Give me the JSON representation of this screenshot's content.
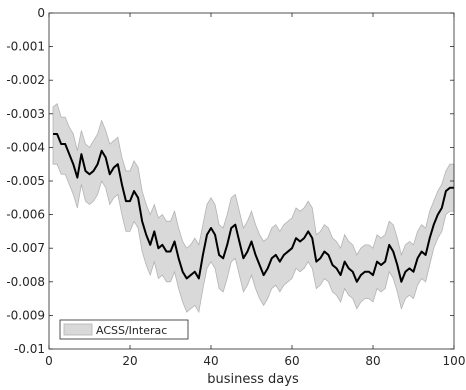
{
  "chart_data": {
    "type": "line",
    "title": "",
    "xlabel": "business days",
    "ylabel": "",
    "xlim": [
      0,
      100
    ],
    "ylim": [
      -0.01,
      0
    ],
    "xticks": [
      0,
      20,
      40,
      60,
      80,
      100
    ],
    "xtick_labels": [
      "0",
      "20",
      "40",
      "60",
      "80",
      "100"
    ],
    "yticks": [
      0,
      -0.001,
      -0.002,
      -0.003,
      -0.004,
      -0.005,
      -0.006,
      -0.007,
      -0.008,
      -0.009,
      -0.01
    ],
    "ytick_labels": [
      "0",
      "-0.001",
      "-0.002",
      "-0.003",
      "-0.004",
      "-0.005",
      "-0.006",
      "-0.007",
      "-0.008",
      "-0.009",
      "-0.01"
    ],
    "grid": false,
    "legend_position": "bottom-left",
    "legend": [
      "ACSS/Interac"
    ],
    "colors": {
      "line": "#000000",
      "band_fill": "#d9d9d9",
      "band_edge": "#b3b3b3",
      "axis": "#262626"
    },
    "series": [
      {
        "name": "",
        "role": "point estimate",
        "x": [
          1,
          2,
          3,
          4,
          5,
          6,
          7,
          8,
          9,
          10,
          11,
          12,
          13,
          14,
          15,
          16,
          17,
          18,
          19,
          20,
          21,
          22,
          23,
          24,
          25,
          26,
          27,
          28,
          29,
          30,
          31,
          32,
          33,
          34,
          35,
          36,
          37,
          38,
          39,
          40,
          41,
          42,
          43,
          44,
          45,
          46,
          47,
          48,
          49,
          50,
          51,
          52,
          53,
          54,
          55,
          56,
          57,
          58,
          59,
          60,
          61,
          62,
          63,
          64,
          65,
          66,
          67,
          68,
          69,
          70,
          71,
          72,
          73,
          74,
          75,
          76,
          77,
          78,
          79,
          80,
          81,
          82,
          83,
          84,
          85,
          86,
          87,
          88,
          89,
          90,
          91,
          92,
          93,
          94,
          95,
          96,
          97,
          98,
          99,
          100
        ],
        "y": [
          -0.0036,
          -0.0036,
          -0.0039,
          -0.0039,
          -0.0042,
          -0.0045,
          -0.0049,
          -0.0042,
          -0.0047,
          -0.0048,
          -0.0047,
          -0.0045,
          -0.0041,
          -0.0043,
          -0.0048,
          -0.0046,
          -0.0045,
          -0.0051,
          -0.0056,
          -0.0056,
          -0.0053,
          -0.0055,
          -0.0062,
          -0.0066,
          -0.0069,
          -0.0065,
          -0.007,
          -0.0069,
          -0.0071,
          -0.0071,
          -0.0068,
          -0.0073,
          -0.0077,
          -0.0079,
          -0.0078,
          -0.0077,
          -0.0079,
          -0.0072,
          -0.0066,
          -0.0064,
          -0.0066,
          -0.0072,
          -0.0073,
          -0.0069,
          -0.0064,
          -0.0063,
          -0.0068,
          -0.0073,
          -0.0071,
          -0.0068,
          -0.0072,
          -0.0075,
          -0.0078,
          -0.0076,
          -0.0073,
          -0.0072,
          -0.0074,
          -0.0072,
          -0.0071,
          -0.007,
          -0.0067,
          -0.0068,
          -0.0067,
          -0.0065,
          -0.0067,
          -0.0074,
          -0.0073,
          -0.0071,
          -0.0072,
          -0.0075,
          -0.0076,
          -0.0078,
          -0.0074,
          -0.0076,
          -0.0077,
          -0.008,
          -0.0078,
          -0.0077,
          -0.0077,
          -0.0078,
          -0.0074,
          -0.0075,
          -0.0074,
          -0.0069,
          -0.0071,
          -0.0075,
          -0.008,
          -0.0077,
          -0.0076,
          -0.0077,
          -0.0073,
          -0.0071,
          -0.0072,
          -0.0067,
          -0.0063,
          -0.006,
          -0.0058,
          -0.0053,
          -0.0052,
          -0.0052
        ],
        "y_upper": [
          -0.0028,
          -0.0027,
          -0.0031,
          -0.0031,
          -0.0034,
          -0.0036,
          -0.0041,
          -0.0035,
          -0.0039,
          -0.004,
          -0.0038,
          -0.0036,
          -0.0032,
          -0.0035,
          -0.0039,
          -0.0038,
          -0.0037,
          -0.0043,
          -0.0047,
          -0.0047,
          -0.0044,
          -0.0046,
          -0.0053,
          -0.0057,
          -0.006,
          -0.0057,
          -0.0061,
          -0.006,
          -0.0062,
          -0.0062,
          -0.0059,
          -0.0064,
          -0.0068,
          -0.007,
          -0.0069,
          -0.0067,
          -0.0069,
          -0.0063,
          -0.0057,
          -0.0055,
          -0.0057,
          -0.0063,
          -0.0064,
          -0.006,
          -0.0055,
          -0.0054,
          -0.0059,
          -0.0064,
          -0.0062,
          -0.0059,
          -0.0063,
          -0.0066,
          -0.0068,
          -0.0067,
          -0.0064,
          -0.0063,
          -0.0065,
          -0.0063,
          -0.0062,
          -0.0061,
          -0.0058,
          -0.0059,
          -0.0058,
          -0.0056,
          -0.0058,
          -0.0066,
          -0.0065,
          -0.0063,
          -0.0064,
          -0.0067,
          -0.0068,
          -0.007,
          -0.0066,
          -0.0068,
          -0.0069,
          -0.0072,
          -0.007,
          -0.0069,
          -0.0069,
          -0.007,
          -0.0066,
          -0.0067,
          -0.0066,
          -0.0062,
          -0.0063,
          -0.0067,
          -0.0072,
          -0.0069,
          -0.0068,
          -0.0069,
          -0.0065,
          -0.0063,
          -0.0064,
          -0.0059,
          -0.0056,
          -0.0053,
          -0.0051,
          -0.0047,
          -0.0045,
          -0.0045
        ],
        "y_lower": [
          -0.0045,
          -0.0045,
          -0.0048,
          -0.0048,
          -0.0051,
          -0.0054,
          -0.0058,
          -0.0051,
          -0.0056,
          -0.0057,
          -0.0056,
          -0.0054,
          -0.005,
          -0.0052,
          -0.0057,
          -0.0055,
          -0.0054,
          -0.006,
          -0.0065,
          -0.0065,
          -0.0062,
          -0.0064,
          -0.0071,
          -0.0075,
          -0.0078,
          -0.0074,
          -0.0079,
          -0.0078,
          -0.008,
          -0.008,
          -0.0077,
          -0.0082,
          -0.0086,
          -0.0089,
          -0.0088,
          -0.0087,
          -0.0089,
          -0.0082,
          -0.0076,
          -0.0074,
          -0.0076,
          -0.0082,
          -0.0083,
          -0.0079,
          -0.0074,
          -0.0073,
          -0.0078,
          -0.0083,
          -0.0081,
          -0.0078,
          -0.0082,
          -0.0085,
          -0.0087,
          -0.0085,
          -0.0082,
          -0.0081,
          -0.0083,
          -0.0081,
          -0.008,
          -0.0079,
          -0.0076,
          -0.0077,
          -0.0076,
          -0.0074,
          -0.0076,
          -0.0082,
          -0.0081,
          -0.0079,
          -0.008,
          -0.0083,
          -0.0084,
          -0.0086,
          -0.0082,
          -0.0084,
          -0.0085,
          -0.0088,
          -0.0086,
          -0.0085,
          -0.0085,
          -0.0086,
          -0.0082,
          -0.0083,
          -0.0082,
          -0.0077,
          -0.0079,
          -0.0083,
          -0.0088,
          -0.0085,
          -0.0084,
          -0.0085,
          -0.0081,
          -0.0079,
          -0.008,
          -0.0075,
          -0.007,
          -0.0067,
          -0.0065,
          -0.006,
          -0.0059,
          -0.0059
        ]
      }
    ]
  }
}
